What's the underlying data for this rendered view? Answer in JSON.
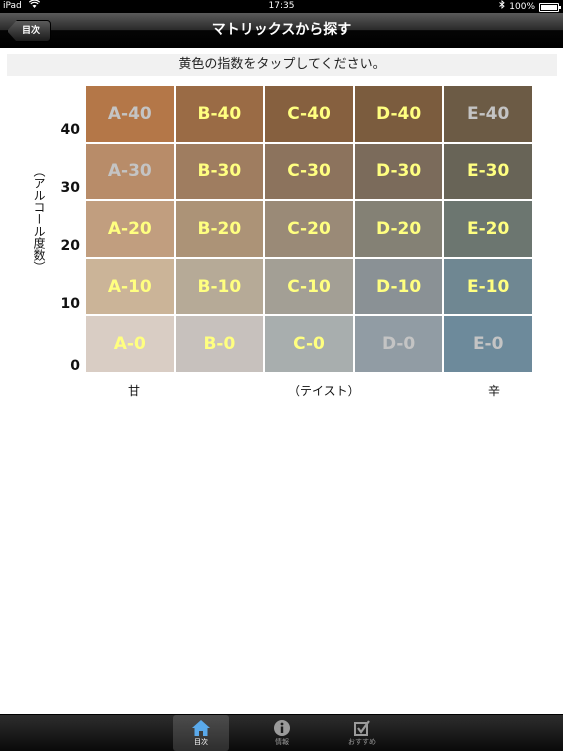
{
  "status_bar": {
    "device": "iPad",
    "time": "17:35",
    "battery": "100%"
  },
  "nav": {
    "title": "マトリックスから探す",
    "back_label": "目次"
  },
  "instruction": "黄色の指数をタップしてください。",
  "y_axis": {
    "label": "（アルコール度数）",
    "ticks": [
      "40",
      "30",
      "20",
      "10",
      "0"
    ]
  },
  "x_axis": {
    "left": "甘",
    "center": "（テイスト）",
    "right": "辛"
  },
  "matrix": {
    "rows": [
      [
        {
          "label": "A-40",
          "bg": "#b47748",
          "fg": "#c4c4c4"
        },
        {
          "label": "B-40",
          "bg": "#9a6b45",
          "fg": "#ffff80"
        },
        {
          "label": "C-40",
          "bg": "#86603f",
          "fg": "#ffff80"
        },
        {
          "label": "D-40",
          "bg": "#7b5c3e",
          "fg": "#ffff80"
        },
        {
          "label": "E-40",
          "bg": "#6c5b45",
          "fg": "#c4c4c4"
        }
      ],
      [
        {
          "label": "A-30",
          "bg": "#b88c69",
          "fg": "#c4c4c4"
        },
        {
          "label": "B-30",
          "bg": "#9f7d60",
          "fg": "#ffff80"
        },
        {
          "label": "C-30",
          "bg": "#8c735d",
          "fg": "#ffff80"
        },
        {
          "label": "D-30",
          "bg": "#7b6b5b",
          "fg": "#ffff80"
        },
        {
          "label": "E-30",
          "bg": "#686457",
          "fg": "#ffff80"
        }
      ],
      [
        {
          "label": "A-20",
          "bg": "#c19e7f",
          "fg": "#ffff80"
        },
        {
          "label": "B-20",
          "bg": "#ac9377",
          "fg": "#ffff80"
        },
        {
          "label": "C-20",
          "bg": "#9a8a77",
          "fg": "#ffff80"
        },
        {
          "label": "D-20",
          "bg": "#848175",
          "fg": "#ffff80"
        },
        {
          "label": "E-20",
          "bg": "#6c7670",
          "fg": "#ffff80"
        }
      ],
      [
        {
          "label": "A-10",
          "bg": "#cbb498",
          "fg": "#ffff80"
        },
        {
          "label": "B-10",
          "bg": "#b6aa97",
          "fg": "#ffff80"
        },
        {
          "label": "C-10",
          "bg": "#a39f95",
          "fg": "#ffff80"
        },
        {
          "label": "D-10",
          "bg": "#8a9195",
          "fg": "#ffff80"
        },
        {
          "label": "E-10",
          "bg": "#6f8792",
          "fg": "#ffff80"
        }
      ],
      [
        {
          "label": "A-0",
          "bg": "#d9cdc4",
          "fg": "#ffff80"
        },
        {
          "label": "B-0",
          "bg": "#c7c1bd",
          "fg": "#ffff80"
        },
        {
          "label": "C-0",
          "bg": "#a8aeae",
          "fg": "#ffff80"
        },
        {
          "label": "D-0",
          "bg": "#919ca4",
          "fg": "#c4c4c4"
        },
        {
          "label": "E-0",
          "bg": "#6d8a9b",
          "fg": "#c4c4c4"
        }
      ]
    ]
  },
  "tabs": [
    {
      "label": "目次",
      "icon": "home-icon",
      "selected": true
    },
    {
      "label": "情報",
      "icon": "info-icon",
      "selected": false
    },
    {
      "label": "おすすめ",
      "icon": "checkbox-icon",
      "selected": false
    }
  ]
}
